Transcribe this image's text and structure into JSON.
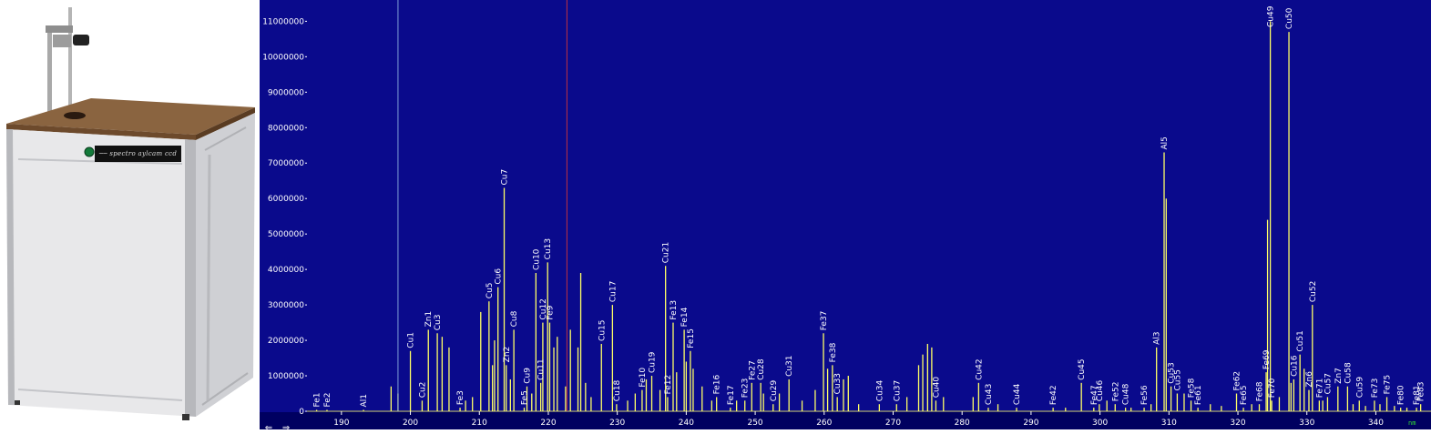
{
  "photo": {
    "brand_plate": "── spectro aylcam ccd"
  },
  "spectrum": {
    "unit_label": "nm",
    "background": "#0a0a8c",
    "line_color": "#ffff66"
  },
  "navigation": {
    "back_label": "⇐",
    "forward_label": "⇒"
  },
  "chart_data": {
    "type": "line",
    "xlim": [
      185,
      348
    ],
    "ylim": [
      0,
      11600000
    ],
    "xticks": [
      190,
      200,
      210,
      220,
      230,
      240,
      250,
      260,
      270,
      280,
      290,
      300,
      310,
      320,
      330,
      340
    ],
    "yticks": [
      0,
      1000000,
      2000000,
      3000000,
      4000000,
      5000000,
      6000000,
      7000000,
      8000000,
      9000000,
      10000000,
      11000000
    ],
    "cursor_x": [
      198.2,
      222.7
    ],
    "peaks": [
      {
        "label": "Fe1",
        "x": 186.4,
        "y": 0
      },
      {
        "label": "Fe2",
        "x": 187.9,
        "y": 0
      },
      {
        "label": "Al1",
        "x": 193.2,
        "y": 0
      },
      {
        "label": "Cu1",
        "x": 200.0,
        "y": 1700000
      },
      {
        "label": "Cu2",
        "x": 201.7,
        "y": 300000
      },
      {
        "label": "Zn1",
        "x": 202.6,
        "y": 2300000
      },
      {
        "label": "Cu3",
        "x": 203.9,
        "y": 2200000
      },
      {
        "label": "Fe3",
        "x": 207.2,
        "y": 100000
      },
      {
        "label": "Cu5",
        "x": 211.4,
        "y": 3100000
      },
      {
        "label": "Cu6",
        "x": 212.7,
        "y": 3500000
      },
      {
        "label": "Zn2",
        "x": 213.9,
        "y": 1300000
      },
      {
        "label": "Cu7",
        "x": 213.6,
        "y": 6300000
      },
      {
        "label": "Cu8",
        "x": 215.0,
        "y": 2300000
      },
      {
        "label": "Fe5",
        "x": 216.5,
        "y": 100000
      },
      {
        "label": "Cu9",
        "x": 216.9,
        "y": 700000
      },
      {
        "label": "Cu10",
        "x": 218.2,
        "y": 3900000
      },
      {
        "label": "Cu11",
        "x": 218.9,
        "y": 800000
      },
      {
        "label": "Cu12",
        "x": 219.2,
        "y": 2500000
      },
      {
        "label": "Cu13",
        "x": 219.9,
        "y": 4200000
      },
      {
        "label": "Fe9",
        "x": 220.2,
        "y": 2500000
      },
      {
        "label": "Cu15",
        "x": 227.7,
        "y": 1900000
      },
      {
        "label": "Cu17",
        "x": 229.3,
        "y": 3000000
      },
      {
        "label": "Cu18",
        "x": 229.9,
        "y": 200000
      },
      {
        "label": "Fe10",
        "x": 233.6,
        "y": 600000
      },
      {
        "label": "Cu19",
        "x": 235.0,
        "y": 1000000
      },
      {
        "label": "Cu21",
        "x": 237.0,
        "y": 4100000
      },
      {
        "label": "Fe12",
        "x": 237.3,
        "y": 400000
      },
      {
        "label": "Fe13",
        "x": 238.1,
        "y": 2500000
      },
      {
        "label": "Fe14",
        "x": 239.7,
        "y": 2300000
      },
      {
        "label": "Fe15",
        "x": 240.6,
        "y": 1700000
      },
      {
        "label": "Fe16",
        "x": 244.4,
        "y": 400000
      },
      {
        "label": "Fe17",
        "x": 246.4,
        "y": 100000
      },
      {
        "label": "Fe23",
        "x": 248.5,
        "y": 300000
      },
      {
        "label": "Fe27",
        "x": 249.5,
        "y": 800000
      },
      {
        "label": "Cu28",
        "x": 250.8,
        "y": 800000
      },
      {
        "label": "Cu29",
        "x": 252.6,
        "y": 200000
      },
      {
        "label": "Cu31",
        "x": 254.9,
        "y": 900000
      },
      {
        "label": "Fe37",
        "x": 259.9,
        "y": 2200000
      },
      {
        "label": "Fe38",
        "x": 261.2,
        "y": 1300000
      },
      {
        "label": "Cu33",
        "x": 261.9,
        "y": 400000
      },
      {
        "label": "Cu34",
        "x": 268.0,
        "y": 200000
      },
      {
        "label": "Cu37",
        "x": 270.5,
        "y": 200000
      },
      {
        "label": "Cu40",
        "x": 276.2,
        "y": 300000
      },
      {
        "label": "Cu42",
        "x": 282.4,
        "y": 800000
      },
      {
        "label": "Cu43",
        "x": 283.8,
        "y": 100000
      },
      {
        "label": "Cu44",
        "x": 287.9,
        "y": 100000
      },
      {
        "label": "Fe42",
        "x": 293.2,
        "y": 100000
      },
      {
        "label": "Cu45",
        "x": 297.3,
        "y": 800000
      },
      {
        "label": "Fe47",
        "x": 299.1,
        "y": 100000
      },
      {
        "label": "Cu46",
        "x": 299.9,
        "y": 200000
      },
      {
        "label": "Fe52",
        "x": 302.2,
        "y": 200000
      },
      {
        "label": "Cu48",
        "x": 303.7,
        "y": 100000
      },
      {
        "label": "Fe56",
        "x": 306.4,
        "y": 100000
      },
      {
        "label": "Al3",
        "x": 308.2,
        "y": 1800000
      },
      {
        "label": "Al5",
        "x": 309.3,
        "y": 7300000
      },
      {
        "label": "Cu53",
        "x": 310.3,
        "y": 700000
      },
      {
        "label": "Cu55",
        "x": 311.2,
        "y": 500000
      },
      {
        "label": "Fe58",
        "x": 313.2,
        "y": 300000
      },
      {
        "label": "Fe61",
        "x": 314.2,
        "y": 100000
      },
      {
        "label": "Fe62",
        "x": 319.8,
        "y": 500000
      },
      {
        "label": "Fe65",
        "x": 320.8,
        "y": 100000
      },
      {
        "label": "Fe68",
        "x": 323.1,
        "y": 200000
      },
      {
        "label": "Fe69",
        "x": 324.1,
        "y": 1100000
      },
      {
        "label": "Cu49",
        "x": 324.7,
        "y": 11000000
      },
      {
        "label": "Fe70",
        "x": 324.9,
        "y": 300000
      },
      {
        "label": "Cu50",
        "x": 327.4,
        "y": 10700000
      },
      {
        "label": "Cu16",
        "x": 328.1,
        "y": 900000
      },
      {
        "label": "Cu51",
        "x": 329.0,
        "y": 1600000
      },
      {
        "label": "Zn6",
        "x": 330.3,
        "y": 600000
      },
      {
        "label": "Cu52",
        "x": 330.8,
        "y": 3000000
      },
      {
        "label": "Fe71",
        "x": 331.8,
        "y": 300000
      },
      {
        "label": "Cu57",
        "x": 333.0,
        "y": 400000
      },
      {
        "label": "Zn7",
        "x": 334.5,
        "y": 700000
      },
      {
        "label": "Cu58",
        "x": 335.9,
        "y": 700000
      },
      {
        "label": "Cu59",
        "x": 337.6,
        "y": 300000
      },
      {
        "label": "Fe73",
        "x": 339.8,
        "y": 300000
      },
      {
        "label": "Fe75",
        "x": 341.6,
        "y": 400000
      },
      {
        "label": "Fe80",
        "x": 343.6,
        "y": 100000
      },
      {
        "label": "Fe81",
        "x": 345.9,
        "y": 100000
      },
      {
        "label": "Fe83",
        "x": 346.5,
        "y": 200000
      }
    ],
    "extra_lines": [
      {
        "x": 197.2,
        "y": 700000
      },
      {
        "x": 198.2,
        "y": 500000
      },
      {
        "x": 204.6,
        "y": 2100000
      },
      {
        "x": 205.6,
        "y": 1800000
      },
      {
        "x": 208.0,
        "y": 300000
      },
      {
        "x": 209.0,
        "y": 400000
      },
      {
        "x": 210.2,
        "y": 2800000
      },
      {
        "x": 211.9,
        "y": 1300000
      },
      {
        "x": 212.2,
        "y": 2000000
      },
      {
        "x": 214.5,
        "y": 900000
      },
      {
        "x": 217.6,
        "y": 500000
      },
      {
        "x": 220.8,
        "y": 1800000
      },
      {
        "x": 221.3,
        "y": 2100000
      },
      {
        "x": 222.5,
        "y": 700000
      },
      {
        "x": 223.2,
        "y": 2300000
      },
      {
        "x": 224.3,
        "y": 1800000
      },
      {
        "x": 224.7,
        "y": 3900000
      },
      {
        "x": 225.4,
        "y": 800000
      },
      {
        "x": 226.2,
        "y": 400000
      },
      {
        "x": 231.5,
        "y": 300000
      },
      {
        "x": 232.6,
        "y": 500000
      },
      {
        "x": 234.2,
        "y": 900000
      },
      {
        "x": 236.2,
        "y": 600000
      },
      {
        "x": 238.6,
        "y": 1100000
      },
      {
        "x": 240.0,
        "y": 1400000
      },
      {
        "x": 241.0,
        "y": 1200000
      },
      {
        "x": 242.3,
        "y": 700000
      },
      {
        "x": 243.7,
        "y": 300000
      },
      {
        "x": 247.3,
        "y": 300000
      },
      {
        "x": 251.2,
        "y": 500000
      },
      {
        "x": 253.5,
        "y": 500000
      },
      {
        "x": 256.8,
        "y": 300000
      },
      {
        "x": 258.7,
        "y": 600000
      },
      {
        "x": 260.5,
        "y": 1200000
      },
      {
        "x": 262.8,
        "y": 900000
      },
      {
        "x": 263.5,
        "y": 1000000
      },
      {
        "x": 265.0,
        "y": 200000
      },
      {
        "x": 272.0,
        "y": 400000
      },
      {
        "x": 273.7,
        "y": 1300000
      },
      {
        "x": 274.3,
        "y": 1600000
      },
      {
        "x": 275.0,
        "y": 1900000
      },
      {
        "x": 275.6,
        "y": 1800000
      },
      {
        "x": 277.3,
        "y": 400000
      },
      {
        "x": 281.6,
        "y": 400000
      },
      {
        "x": 285.2,
        "y": 200000
      },
      {
        "x": 295.0,
        "y": 100000
      },
      {
        "x": 301.0,
        "y": 300000
      },
      {
        "x": 304.5,
        "y": 100000
      },
      {
        "x": 307.4,
        "y": 200000
      },
      {
        "x": 309.6,
        "y": 6000000
      },
      {
        "x": 312.2,
        "y": 500000
      },
      {
        "x": 316.0,
        "y": 200000
      },
      {
        "x": 317.6,
        "y": 150000
      },
      {
        "x": 322.0,
        "y": 200000
      },
      {
        "x": 324.3,
        "y": 5400000
      },
      {
        "x": 326.0,
        "y": 400000
      },
      {
        "x": 327.7,
        "y": 800000
      },
      {
        "x": 329.6,
        "y": 1200000
      },
      {
        "x": 332.3,
        "y": 300000
      },
      {
        "x": 336.7,
        "y": 200000
      },
      {
        "x": 338.5,
        "y": 150000
      },
      {
        "x": 340.6,
        "y": 200000
      },
      {
        "x": 342.7,
        "y": 150000
      },
      {
        "x": 344.5,
        "y": 100000
      }
    ]
  }
}
